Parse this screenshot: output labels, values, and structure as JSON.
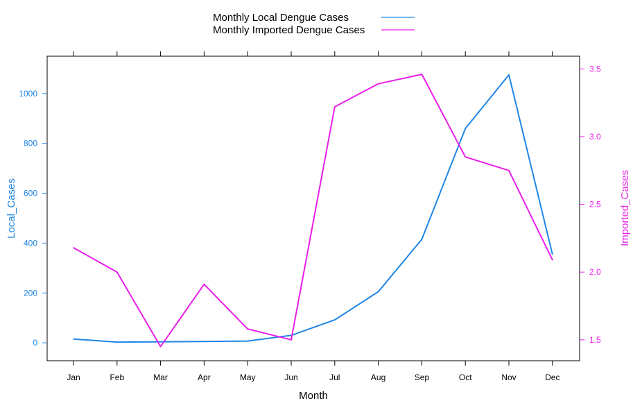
{
  "chart_data": {
    "type": "line",
    "categories": [
      "Jan",
      "Feb",
      "Mar",
      "Apr",
      "May",
      "Jun",
      "Jul",
      "Aug",
      "Sep",
      "Oct",
      "Nov",
      "Dec"
    ],
    "xlabel": "Month",
    "series": [
      {
        "name": "Monthly Local Dengue Cases",
        "axis": "left",
        "color": "#1e86e6",
        "values": [
          15,
          3,
          4,
          5,
          7,
          30,
          92,
          205,
          415,
          860,
          1075,
          355
        ]
      },
      {
        "name": "Monthly Imported Dengue Cases",
        "axis": "right",
        "color": "#e91ee9",
        "values": [
          2.18,
          2.0,
          1.45,
          1.91,
          1.58,
          1.5,
          3.22,
          3.39,
          3.46,
          2.85,
          2.75,
          2.09
        ]
      }
    ],
    "y_left": {
      "label": "Local_Cases",
      "color": "#1e86e6",
      "ticks": [
        0,
        200,
        400,
        600,
        800,
        1000
      ],
      "range": [
        -72,
        1150
      ]
    },
    "y_right": {
      "label": "Imported_Cases",
      "color": "#e91ee9",
      "ticks": [
        1.5,
        2.0,
        2.5,
        3.0,
        3.5
      ],
      "tick_labels": [
        "1.5",
        "2.0",
        "2.5",
        "3.0",
        "3.5"
      ],
      "range": [
        1.3455,
        3.5939
      ]
    },
    "legend_position": "top-center",
    "grid": false
  }
}
